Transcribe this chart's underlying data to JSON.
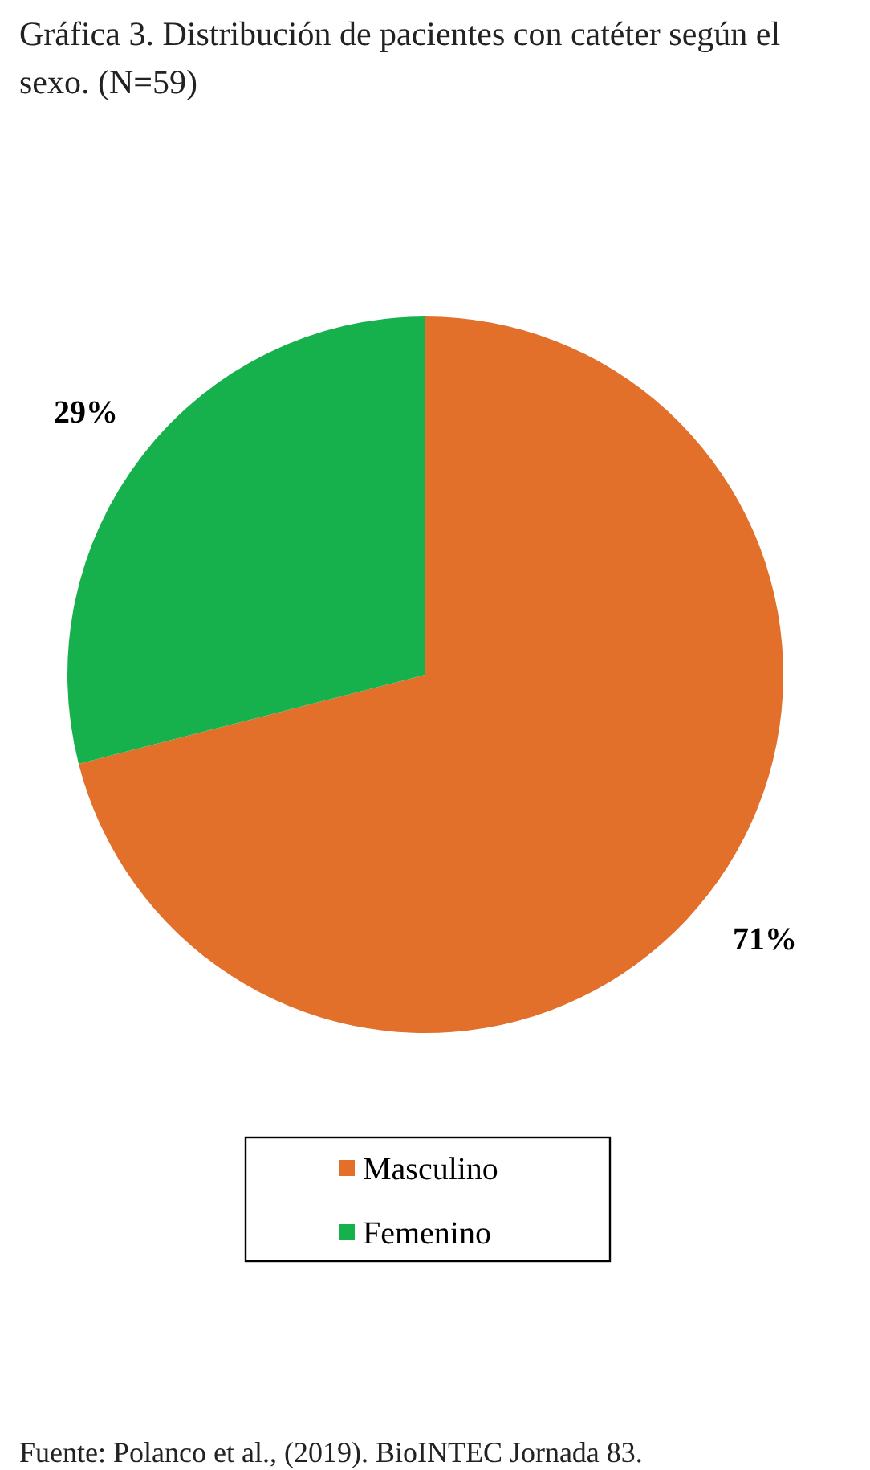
{
  "chart_data": {
    "type": "pie",
    "title": "Gráfica 3. Distribución de pacientes con catéter según el sexo. (N=59)",
    "categories": [
      "Masculino",
      "Femenino"
    ],
    "values": [
      71,
      29
    ],
    "colors": [
      "#e2702b",
      "#16b14d"
    ],
    "value_labels": [
      "71%",
      "29%"
    ],
    "legend": "bottom",
    "annotations": [
      "Fuente: Polanco et al., (2019). BioINTEC Jornada 83."
    ]
  }
}
